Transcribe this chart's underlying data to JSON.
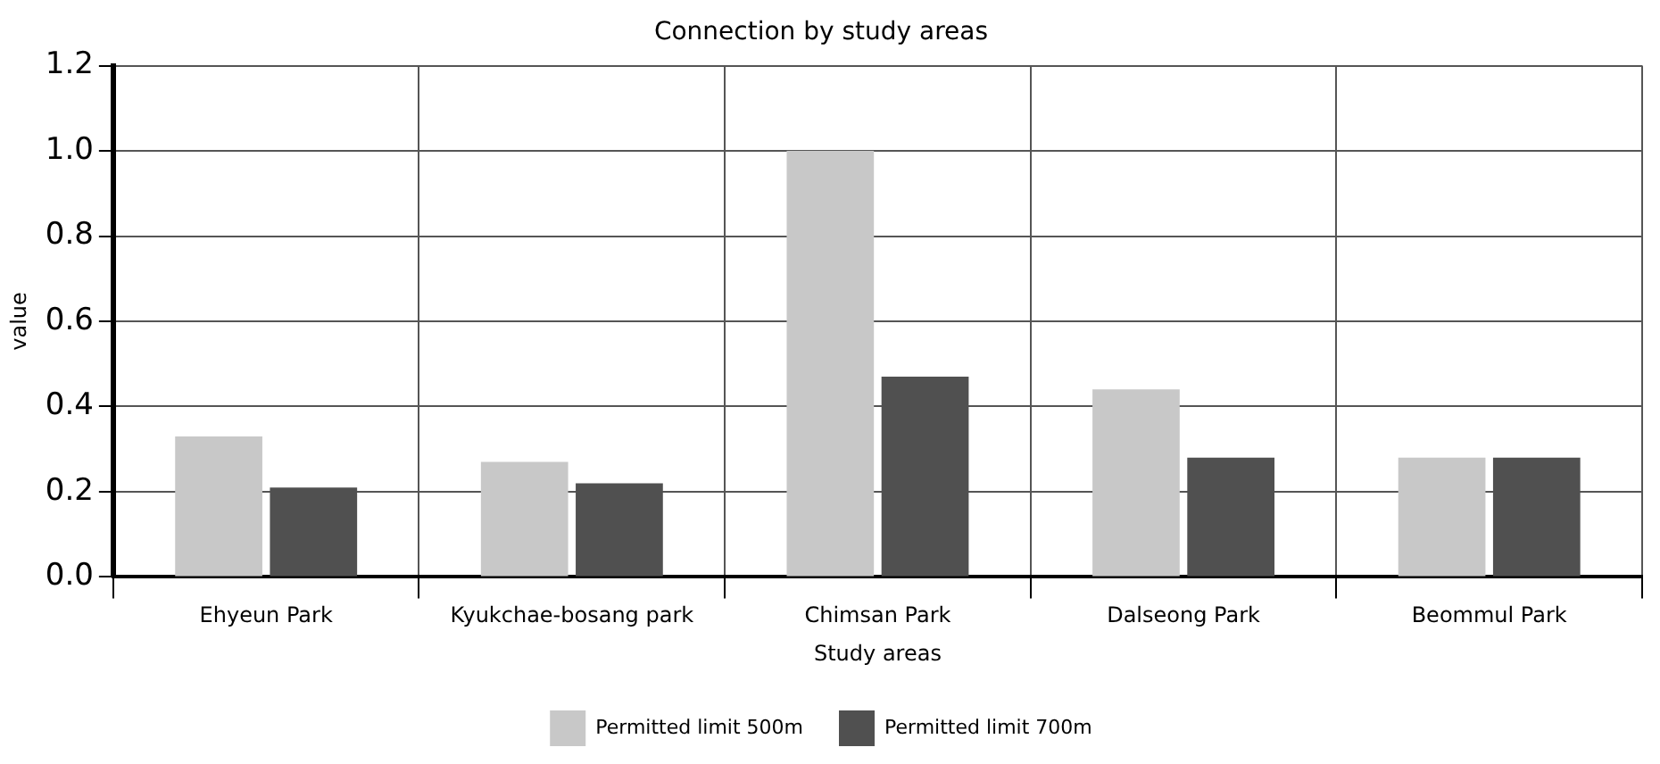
{
  "chart_data": {
    "type": "bar",
    "title": "Connection by study areas",
    "xlabel": "Study areas",
    "ylabel": "value",
    "categories": [
      "Ehyeun Park",
      "Kyukchae-bosang park",
      "Chimsan Park",
      "Dalseong Park",
      "Beommul Park"
    ],
    "series": [
      {
        "name": "Permitted limit 500m",
        "color": "#c8c8c8",
        "values": [
          0.33,
          0.27,
          1.0,
          0.44,
          0.28
        ]
      },
      {
        "name": "Permitted limit 700m",
        "color": "#505050",
        "values": [
          0.21,
          0.22,
          0.47,
          0.28,
          0.28
        ]
      }
    ],
    "ylim": [
      0.0,
      1.2
    ],
    "yticks": [
      {
        "value": 0,
        "label": "0.0"
      },
      {
        "value": 0.2,
        "label": "0.2"
      },
      {
        "value": 0.4,
        "label": "0.4"
      },
      {
        "value": 0.6,
        "label": "0.6"
      },
      {
        "value": 0.8,
        "label": "0.8"
      },
      {
        "value": 1.0,
        "label": "1.0"
      },
      {
        "value": 1.2,
        "label": "1.2"
      }
    ],
    "grid": true,
    "legend": "bottom"
  }
}
